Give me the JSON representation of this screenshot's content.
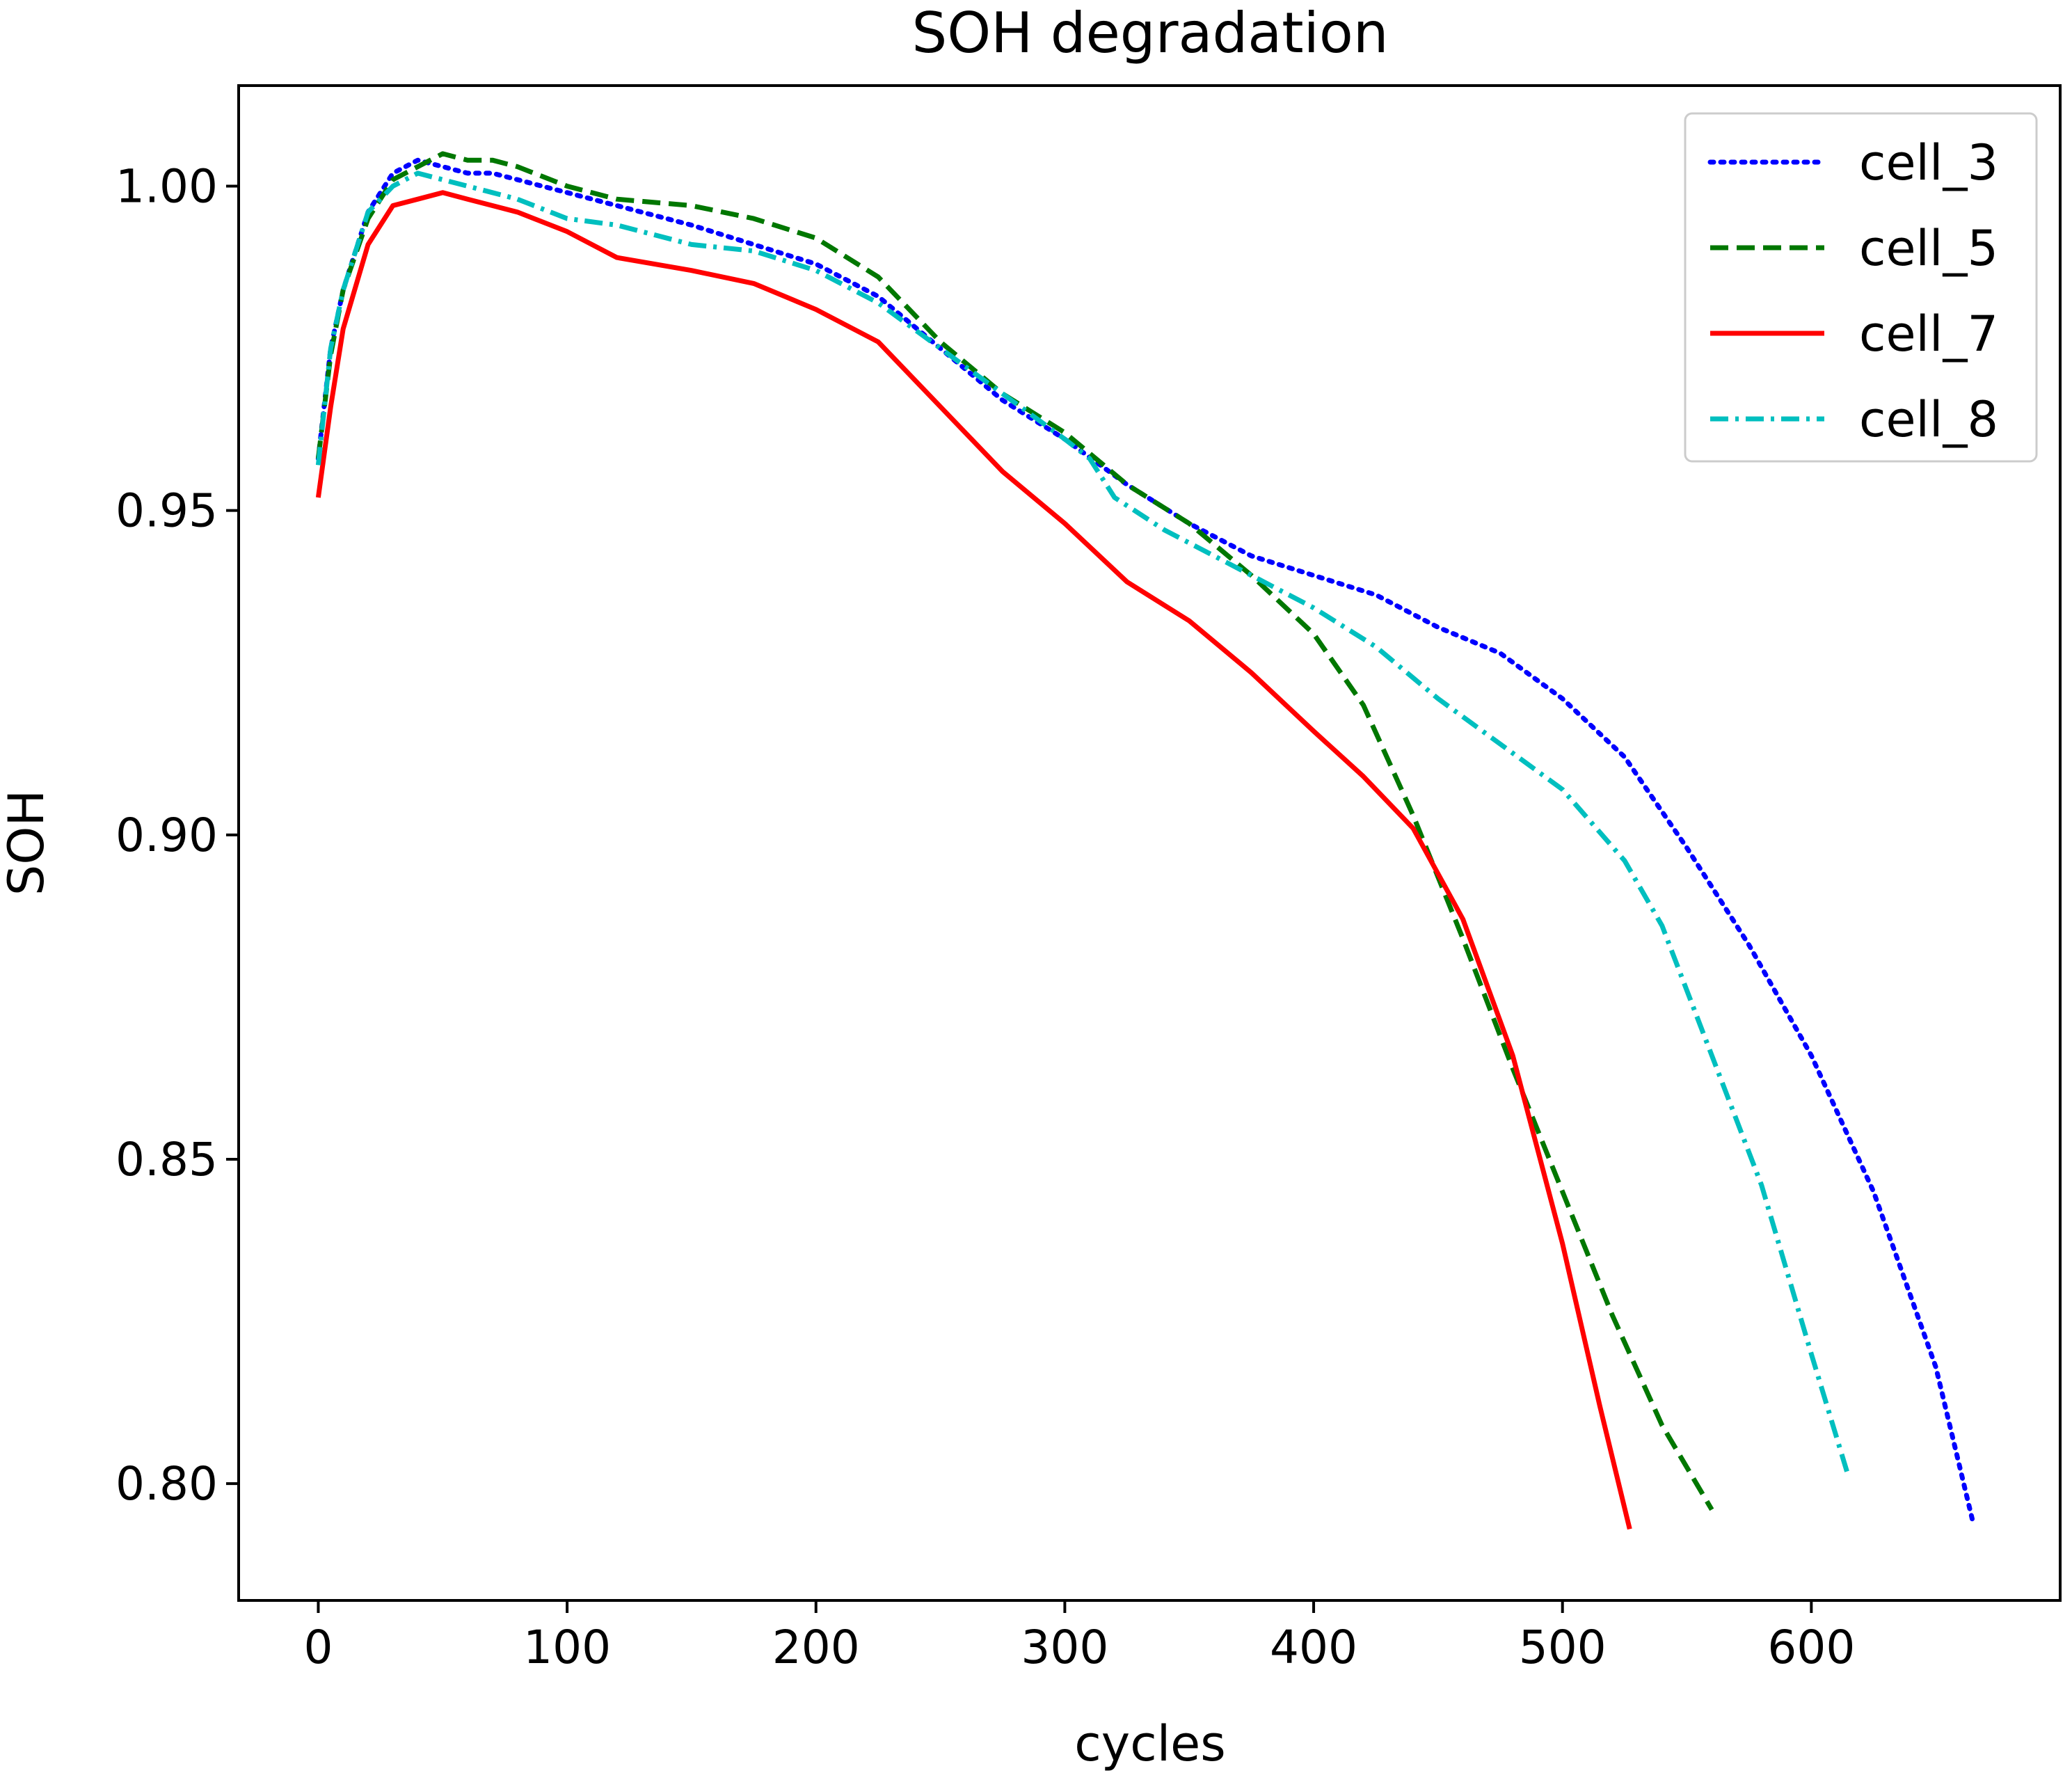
{
  "chart_data": {
    "type": "line",
    "title": "SOH degradation",
    "xlabel": "cycles",
    "ylabel": "SOH",
    "xlim": [
      -32,
      700
    ],
    "ylim": [
      0.782,
      1.0155
    ],
    "xticks": [
      0,
      100,
      200,
      300,
      400,
      500,
      600
    ],
    "xtick_labels": [
      "0",
      "100",
      "200",
      "300",
      "400",
      "500",
      "600"
    ],
    "yticks": [
      0.8,
      0.85,
      0.9,
      0.95,
      1.0
    ],
    "ytick_labels": [
      "0.80",
      "0.85",
      "0.90",
      "0.95",
      "1.00"
    ],
    "grid": false,
    "legend_position": "top-right",
    "series": [
      {
        "name": "cell_3",
        "color": "#0000ff",
        "linestyle": "dotted",
        "x": [
          0,
          5,
          10,
          20,
          30,
          40,
          50,
          60,
          70,
          80,
          100,
          120,
          150,
          175,
          200,
          225,
          250,
          275,
          300,
          325,
          350,
          375,
          400,
          425,
          450,
          475,
          500,
          525,
          550,
          575,
          600,
          625,
          650,
          665
        ],
        "y": [
          0.958,
          0.975,
          0.984,
          0.996,
          1.002,
          1.004,
          1.003,
          1.002,
          1.002,
          1.001,
          0.999,
          0.997,
          0.994,
          0.991,
          0.988,
          0.983,
          0.975,
          0.967,
          0.961,
          0.954,
          0.948,
          0.943,
          0.94,
          0.937,
          0.932,
          0.928,
          0.921,
          0.912,
          0.898,
          0.883,
          0.866,
          0.845,
          0.818,
          0.794
        ]
      },
      {
        "name": "cell_5",
        "color": "#007700",
        "linestyle": "dashed",
        "x": [
          0,
          5,
          10,
          20,
          30,
          40,
          50,
          60,
          70,
          80,
          100,
          120,
          150,
          175,
          200,
          225,
          250,
          275,
          300,
          325,
          350,
          375,
          400,
          420,
          440,
          460,
          480,
          500,
          520,
          540,
          560
        ],
        "y": [
          0.958,
          0.974,
          0.984,
          0.995,
          1.001,
          1.003,
          1.005,
          1.004,
          1.004,
          1.003,
          1.0,
          0.998,
          0.997,
          0.995,
          0.992,
          0.986,
          0.976,
          0.968,
          0.962,
          0.954,
          0.948,
          0.94,
          0.931,
          0.92,
          0.903,
          0.884,
          0.864,
          0.845,
          0.826,
          0.809,
          0.796
        ]
      },
      {
        "name": "cell_7",
        "color": "#ff0000",
        "linestyle": "solid",
        "x": [
          0,
          5,
          10,
          20,
          30,
          40,
          50,
          60,
          70,
          80,
          100,
          120,
          150,
          175,
          200,
          225,
          250,
          275,
          300,
          325,
          350,
          375,
          400,
          420,
          440,
          460,
          480,
          500,
          515,
          527
        ],
        "y": [
          0.952,
          0.966,
          0.978,
          0.991,
          0.997,
          0.998,
          0.999,
          0.998,
          0.997,
          0.996,
          0.993,
          0.989,
          0.987,
          0.985,
          0.981,
          0.976,
          0.966,
          0.956,
          0.948,
          0.939,
          0.933,
          0.925,
          0.916,
          0.909,
          0.901,
          0.887,
          0.866,
          0.837,
          0.812,
          0.793
        ]
      },
      {
        "name": "cell_8",
        "color": "#00bfbf",
        "linestyle": "dashdot",
        "x": [
          0,
          5,
          10,
          20,
          30,
          40,
          50,
          60,
          70,
          80,
          100,
          120,
          150,
          175,
          200,
          225,
          250,
          275,
          300,
          310,
          320,
          340,
          360,
          380,
          400,
          425,
          450,
          475,
          500,
          525,
          540,
          560,
          580,
          600,
          615
        ],
        "y": [
          0.957,
          0.975,
          0.984,
          0.996,
          1.0,
          1.002,
          1.001,
          1.0,
          0.999,
          0.998,
          0.995,
          0.994,
          0.991,
          0.99,
          0.987,
          0.982,
          0.975,
          0.968,
          0.961,
          0.958,
          0.952,
          0.947,
          0.943,
          0.939,
          0.935,
          0.929,
          0.921,
          0.914,
          0.907,
          0.896,
          0.886,
          0.866,
          0.846,
          0.82,
          0.801
        ]
      }
    ]
  }
}
